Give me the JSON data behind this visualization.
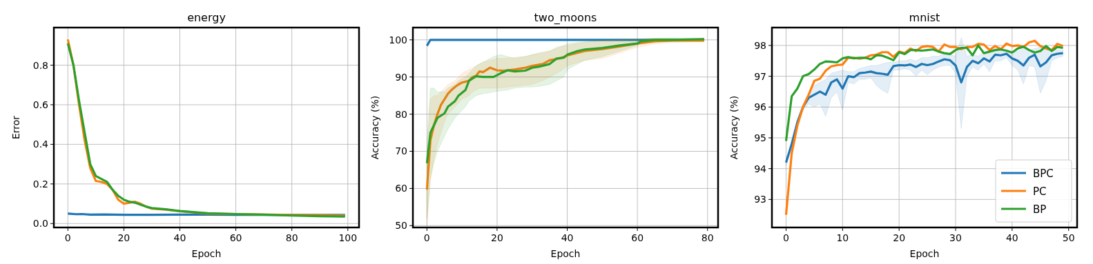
{
  "chart_data": [
    {
      "type": "line",
      "title": "energy",
      "xlabel": "Epoch",
      "ylabel": "Error",
      "xlim": [
        -5,
        104
      ],
      "xticks": [
        0,
        20,
        40,
        60,
        80,
        100
      ],
      "ylim": [
        -0.02,
        0.99
      ],
      "yticks": [
        {
          "value": 0,
          "label": "0.0"
        },
        0.2,
        0.4,
        0.6,
        0.8
      ],
      "grid": true,
      "legend": false,
      "series": [
        {
          "color": "#1f77b4",
          "x": [
            0,
            3,
            5,
            8,
            13,
            20,
            30,
            40,
            50,
            60,
            70,
            80,
            90,
            99
          ],
          "values": [
            0.05,
            0.047,
            0.048,
            0.045,
            0.046,
            0.044,
            0.044,
            0.045,
            0.045,
            0.044,
            null,
            null,
            null,
            0.043
          ]
        },
        {
          "color": "#ff7f0e",
          "x": [
            0,
            2,
            4,
            6,
            8,
            10,
            12,
            14,
            16,
            18,
            20,
            22,
            24,
            26,
            28,
            30,
            35,
            40,
            50,
            60,
            70,
            80,
            90,
            99
          ],
          "values": [
            0.93,
            0.8,
            0.6,
            0.42,
            0.28,
            0.215,
            0.21,
            0.2,
            0.17,
            0.12,
            0.1,
            0.105,
            0.11,
            0.1,
            0.085,
            0.075,
            0.07,
            0.062,
            0.05,
            0.048,
            null,
            0.043,
            0.042,
            0.04
          ]
        },
        {
          "color": "#2ca02c",
          "x": [
            0,
            2,
            4,
            6,
            8,
            10,
            12,
            14,
            16,
            18,
            20,
            22,
            24,
            26,
            28,
            30,
            35,
            40,
            50,
            60,
            70,
            80,
            90,
            99
          ],
          "values": [
            0.91,
            0.8,
            0.62,
            0.46,
            0.3,
            0.24,
            0.225,
            0.21,
            0.17,
            0.14,
            0.12,
            0.11,
            0.105,
            0.095,
            0.085,
            0.078,
            0.072,
            0.063,
            0.052,
            0.048,
            0.045,
            0.04,
            0.037,
            0.035
          ]
        }
      ]
    },
    {
      "type": "line",
      "title": "two_moons",
      "xlabel": "Epoch",
      "ylabel": "Accuracy (%)",
      "xlim": [
        -4,
        83
      ],
      "xticks": [
        0,
        20,
        40,
        60,
        80
      ],
      "ylim": [
        49.5,
        103.3
      ],
      "yticks": [
        50,
        60,
        70,
        80,
        90,
        100
      ],
      "grid": true,
      "legend": false,
      "series": [
        {
          "color": "#1f77b4",
          "x": [
            0,
            1,
            79
          ],
          "values": [
            98.4,
            100,
            100
          ]
        },
        {
          "color": "#ff7f0e",
          "x": [
            0,
            1,
            2,
            3,
            4,
            5,
            6,
            7,
            8,
            9,
            10,
            12,
            13,
            14,
            15,
            16,
            18,
            20,
            22,
            25,
            28,
            30,
            33,
            35,
            38,
            40,
            45,
            50,
            55,
            60,
            65,
            70,
            79
          ],
          "values": [
            59.7,
            73,
            77,
            80,
            82.5,
            84,
            85.5,
            86.5,
            87.3,
            88,
            88.5,
            89,
            90,
            90.3,
            91.5,
            91.3,
            92.5,
            91.8,
            91.7,
            92,
            92.5,
            93,
            93.5,
            94.5,
            95,
            95.8,
            97,
            97.5,
            98.2,
            99,
            99.6,
            99.8,
            99.8
          ],
          "lower": [
            50,
            62,
            68,
            72,
            75,
            78,
            80,
            81,
            82,
            83,
            84,
            85,
            86,
            86.5,
            87,
            87,
            87,
            87,
            87.2,
            87.5,
            87.8,
            88,
            89,
            90,
            91.5,
            93,
            94.5,
            95,
            96.5,
            98,
            99,
            99.3,
            99.5
          ],
          "upper": [
            70,
            84,
            85,
            85,
            86,
            87,
            88,
            88.5,
            89,
            90,
            91,
            92,
            92.5,
            93,
            93.5,
            94,
            94.5,
            95,
            95,
            95.3,
            95.5,
            96,
            96.5,
            97,
            98,
            98.5,
            99.3,
            99.8,
            100,
            100.2,
            100.5,
            100.4,
            100.3
          ]
        },
        {
          "color": "#2ca02c",
          "x": [
            0,
            1,
            2,
            3,
            5,
            6,
            8,
            9,
            11,
            12,
            14,
            16,
            19,
            21,
            23,
            25,
            28,
            30,
            32,
            35,
            37,
            39,
            40,
            43,
            45,
            50,
            55,
            60,
            61,
            65,
            70,
            79
          ],
          "values": [
            66.8,
            75,
            77,
            79,
            80.2,
            82,
            83.5,
            85,
            86.5,
            89,
            90.2,
            90,
            90,
            91,
            91.8,
            91.5,
            91.7,
            92.5,
            92.8,
            93.5,
            95,
            95.2,
            96,
            97,
            97.4,
            97.8,
            98.5,
            99,
            99.6,
            100,
            100,
            100.2
          ],
          "lower": [
            52,
            63,
            67,
            70,
            74,
            76,
            79,
            80,
            82,
            83.5,
            85,
            85.5,
            86,
            86.3,
            86.5,
            87,
            87.3,
            87.3,
            87.5,
            88,
            89,
            90,
            92,
            93.5,
            94.5,
            95.5,
            97,
            98.5,
            99,
            99.5,
            99.6,
            99.6
          ],
          "upper": [
            72,
            87,
            87,
            86,
            86,
            87,
            88,
            89,
            90,
            91,
            93,
            94,
            95.5,
            96,
            95.5,
            95,
            95.5,
            96,
            96.5,
            97,
            98,
            98.5,
            99,
            99.3,
            99.5,
            100,
            100.2,
            100.3,
            100.3,
            100.4,
            100.5,
            100.5
          ]
        }
      ]
    },
    {
      "type": "line",
      "title": "mnist",
      "xlabel": "Epoch",
      "ylabel": "Accuracy (%)",
      "xlim": [
        -2.5,
        51.5
      ],
      "xticks": [
        0,
        10,
        20,
        30,
        40,
        50
      ],
      "ylim": [
        92.09,
        98.58
      ],
      "yticks": [
        93,
        94,
        95,
        96,
        97,
        98
      ],
      "grid": true,
      "legend": "bottom right",
      "series": [
        {
          "name": "BPC",
          "color": "#1f77b4",
          "x": [
            0,
            1,
            2,
            3,
            4,
            5,
            6,
            7,
            8,
            9,
            10,
            11,
            12,
            13,
            14,
            15,
            16,
            17,
            18,
            19,
            20,
            21,
            22,
            23,
            24,
            25,
            26,
            27,
            28,
            29,
            30,
            31,
            32,
            33,
            34,
            35,
            36,
            37,
            38,
            39,
            40,
            41,
            42,
            43,
            44,
            45,
            46,
            47,
            48,
            49
          ],
          "values": [
            94.2,
            94.8,
            95.5,
            96.0,
            96.3,
            96.4,
            96.5,
            96.4,
            96.8,
            96.9,
            96.6,
            97.0,
            96.97,
            97.1,
            97.12,
            97.15,
            97.1,
            97.08,
            97.05,
            97.33,
            97.36,
            97.35,
            97.38,
            97.3,
            97.4,
            97.36,
            97.4,
            97.48,
            97.55,
            97.52,
            97.35,
            96.8,
            97.3,
            97.5,
            97.42,
            97.58,
            97.48,
            97.7,
            97.68,
            97.73,
            97.58,
            97.5,
            97.35,
            97.6,
            97.7,
            97.32,
            97.45,
            97.68,
            97.73,
            97.75
          ],
          "lower": [
            94.1,
            94.7,
            95.4,
            95.9,
            96.1,
            96.0,
            96.1,
            95.7,
            96.3,
            96.5,
            95.9,
            96.8,
            96.75,
            96.9,
            96.9,
            96.95,
            96.7,
            96.55,
            96.45,
            97.2,
            97.2,
            97.25,
            97.2,
            97.0,
            97.2,
            97.05,
            97.2,
            97.3,
            97.35,
            97.35,
            97.1,
            95.3,
            97.0,
            97.3,
            97.2,
            97.4,
            97.15,
            97.5,
            97.5,
            97.6,
            97.35,
            97.2,
            96.75,
            97.35,
            97.3,
            96.45,
            96.85,
            97.5,
            97.6,
            97.65
          ],
          "upper": [
            94.3,
            94.9,
            95.6,
            96.1,
            96.45,
            96.7,
            96.8,
            96.9,
            97.1,
            97.15,
            97.2,
            97.15,
            97.15,
            97.25,
            97.3,
            97.35,
            97.35,
            97.4,
            97.45,
            97.45,
            97.5,
            97.5,
            97.55,
            97.5,
            97.6,
            97.6,
            97.65,
            97.65,
            97.75,
            97.7,
            97.65,
            98.25,
            97.65,
            97.7,
            97.65,
            97.8,
            97.75,
            97.9,
            97.85,
            97.85,
            97.8,
            97.8,
            97.9,
            97.85,
            97.9,
            97.95,
            97.95,
            97.85,
            97.85,
            97.85
          ]
        },
        {
          "name": "PC",
          "color": "#ff7f0e",
          "x": [
            0,
            1,
            2,
            3,
            4,
            5,
            6,
            7,
            8,
            9,
            10,
            11,
            12,
            13,
            14,
            15,
            16,
            17,
            18,
            19,
            20,
            21,
            22,
            23,
            24,
            25,
            26,
            27,
            28,
            29,
            30,
            31,
            32,
            33,
            34,
            35,
            36,
            37,
            38,
            39,
            40,
            41,
            42,
            43,
            44,
            45,
            46,
            47,
            48,
            49
          ],
          "values": [
            92.5,
            94.5,
            95.4,
            96.0,
            96.4,
            96.85,
            96.92,
            97.18,
            97.32,
            97.36,
            97.38,
            97.6,
            97.6,
            97.57,
            97.6,
            97.68,
            97.7,
            97.78,
            97.78,
            97.63,
            97.8,
            97.75,
            97.9,
            97.82,
            97.95,
            97.98,
            97.95,
            97.8,
            98.03,
            97.95,
            97.95,
            97.88,
            97.95,
            97.95,
            98.05,
            98.03,
            97.85,
            97.98,
            97.88,
            98.06,
            97.98,
            98.0,
            97.95,
            98.1,
            98.15,
            97.98,
            97.9,
            97.85,
            98.05,
            97.98
          ]
        },
        {
          "name": "BP",
          "color": "#2ca02c",
          "x": [
            0,
            1,
            2,
            3,
            4,
            5,
            6,
            7,
            8,
            9,
            10,
            11,
            12,
            13,
            14,
            15,
            16,
            17,
            18,
            19,
            20,
            21,
            22,
            23,
            24,
            25,
            26,
            27,
            28,
            29,
            30,
            31,
            32,
            33,
            34,
            35,
            36,
            37,
            38,
            39,
            40,
            41,
            42,
            43,
            44,
            45,
            46,
            47,
            48,
            49
          ],
          "values": [
            94.9,
            96.35,
            96.6,
            97.0,
            97.07,
            97.22,
            97.4,
            97.48,
            97.47,
            97.45,
            97.58,
            97.62,
            97.58,
            97.6,
            97.6,
            97.55,
            97.68,
            97.67,
            97.6,
            97.52,
            97.78,
            97.72,
            97.85,
            97.85,
            97.83,
            97.85,
            97.87,
            97.8,
            97.75,
            97.72,
            97.85,
            97.92,
            97.92,
            97.68,
            98.0,
            97.75,
            97.8,
            97.85,
            97.87,
            97.83,
            97.77,
            97.9,
            97.96,
            97.85,
            97.77,
            97.82,
            97.98,
            97.82,
            97.95,
            97.92
          ]
        }
      ]
    }
  ]
}
